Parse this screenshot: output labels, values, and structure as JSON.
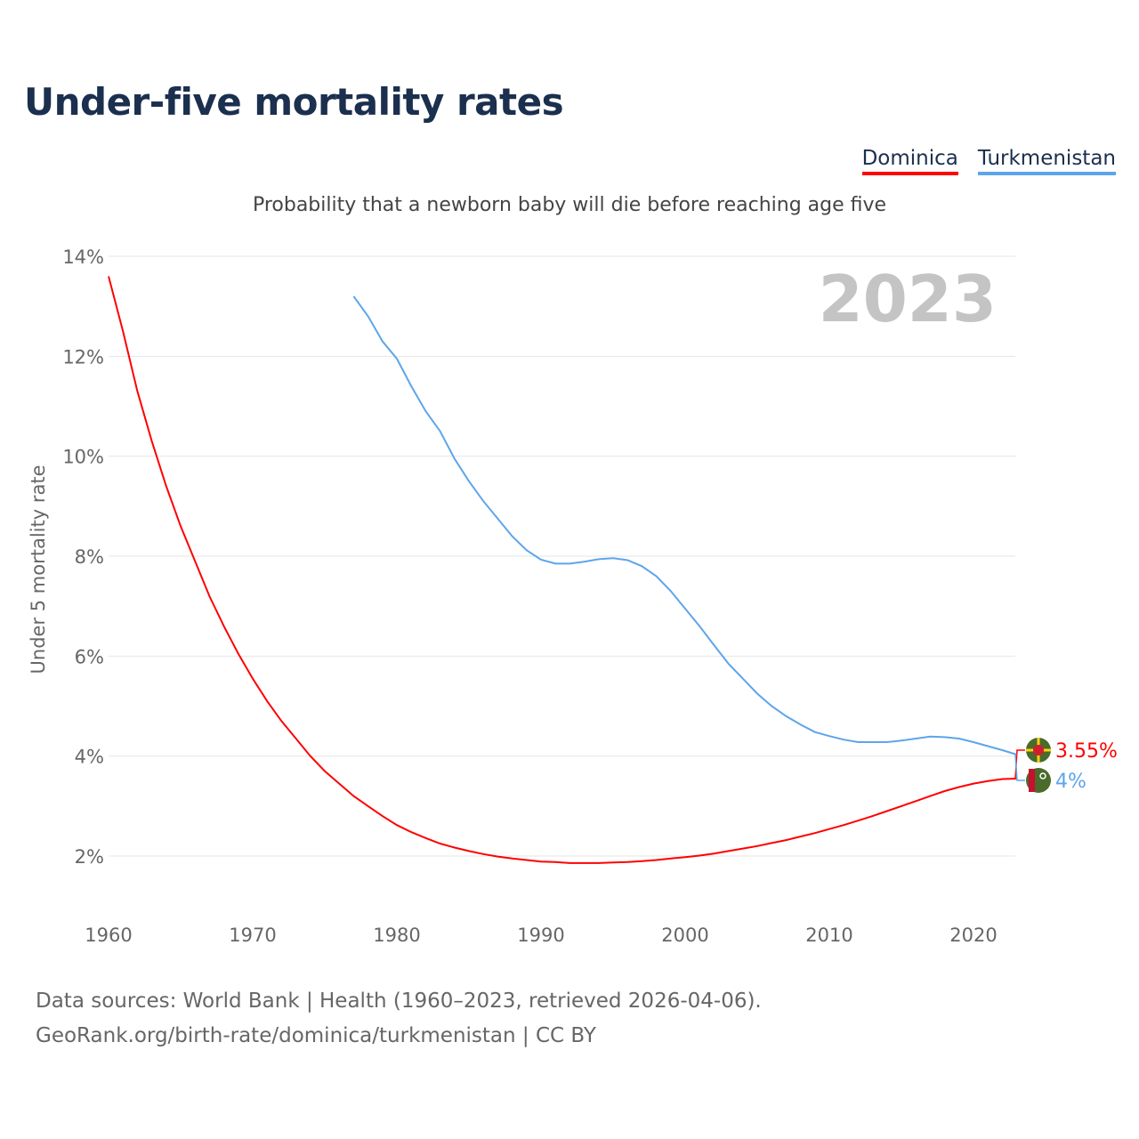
{
  "title": "Under-five mortality rates",
  "subtitle": "Probability that a newborn baby will die before reaching age five",
  "year_watermark": "2023",
  "footer": {
    "line1": "Data sources: World Bank | Health (1960–2023, retrieved 2026-04-06).",
    "line2": "GeoRank.org/birth-rate/dominica/turkmenistan | CC BY"
  },
  "chart_data": {
    "type": "line",
    "title": "Under-five mortality rates",
    "ylabel": "Under 5 mortality rate",
    "xlabel": "",
    "xlim": [
      1960,
      2023
    ],
    "ylim": [
      1,
      14
    ],
    "x_ticks": [
      "1960",
      "1970",
      "1980",
      "1990",
      "2000",
      "2010",
      "2020"
    ],
    "y_ticks": [
      "2%",
      "4%",
      "6%",
      "8%",
      "10%",
      "12%",
      "14%"
    ],
    "legend": "top-right",
    "series": [
      {
        "name": "Dominica",
        "color": "#ff0000",
        "start_year": 1960,
        "end_label": "3.55%",
        "flag": "dominica-flag",
        "values": [
          13.6,
          12.5,
          11.3,
          10.3,
          9.4,
          8.6,
          7.9,
          7.2,
          6.6,
          6.05,
          5.55,
          5.1,
          4.7,
          4.35,
          4.0,
          3.7,
          3.45,
          3.2,
          3.0,
          2.8,
          2.62,
          2.48,
          2.36,
          2.25,
          2.17,
          2.1,
          2.04,
          1.99,
          1.95,
          1.92,
          1.89,
          1.88,
          1.86,
          1.86,
          1.86,
          1.87,
          1.88,
          1.9,
          1.92,
          1.95,
          1.98,
          2.01,
          2.05,
          2.1,
          2.15,
          2.2,
          2.26,
          2.32,
          2.39,
          2.46,
          2.54,
          2.62,
          2.71,
          2.8,
          2.9,
          3.0,
          3.1,
          3.2,
          3.3,
          3.38,
          3.45,
          3.5,
          3.54,
          3.55
        ]
      },
      {
        "name": "Turkmenistan",
        "color": "#5da5eb",
        "start_year": 1977,
        "end_label": "4%",
        "flag": "turkmenistan-flag",
        "values": [
          13.2,
          12.8,
          12.3,
          11.95,
          11.4,
          10.9,
          10.5,
          9.95,
          9.5,
          9.1,
          8.75,
          8.4,
          8.12,
          7.93,
          7.85,
          7.85,
          7.89,
          7.94,
          7.96,
          7.92,
          7.8,
          7.6,
          7.3,
          6.95,
          6.6,
          6.22,
          5.85,
          5.55,
          5.25,
          5.0,
          4.8,
          4.63,
          4.48,
          4.4,
          4.33,
          4.28,
          4.28,
          4.28,
          4.31,
          4.35,
          4.39,
          4.38,
          4.35,
          4.28,
          4.2,
          4.12,
          4.03
        ]
      }
    ]
  }
}
